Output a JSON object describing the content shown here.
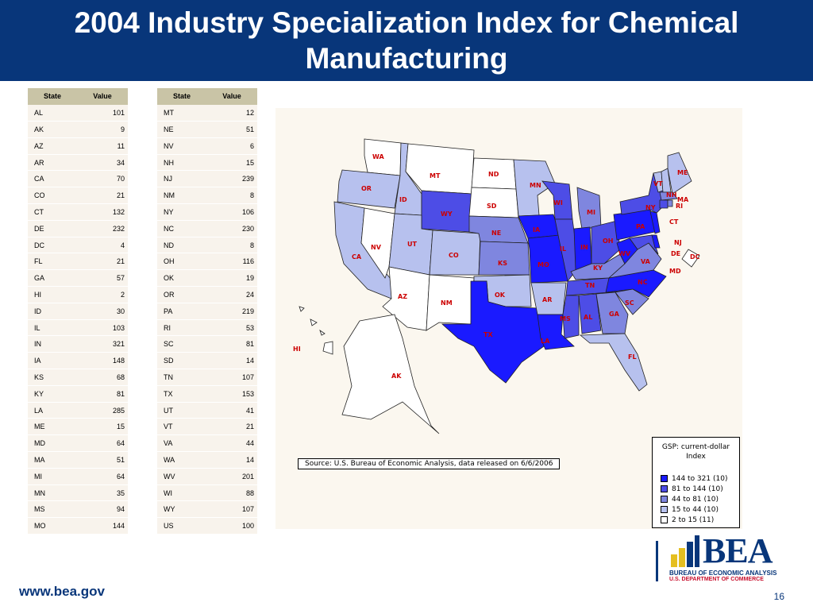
{
  "slide": {
    "title": "2004 Industry Specialization Index for Chemical Manufacturing",
    "footer_url": "www.bea.gov",
    "page_number": "16"
  },
  "table": {
    "headers": {
      "state": "State",
      "value": "Value"
    },
    "left_rows": [
      {
        "state": "AL",
        "value": "101"
      },
      {
        "state": "AK",
        "value": "9"
      },
      {
        "state": "AZ",
        "value": "11"
      },
      {
        "state": "AR",
        "value": "34"
      },
      {
        "state": "CA",
        "value": "70"
      },
      {
        "state": "CO",
        "value": "21"
      },
      {
        "state": "CT",
        "value": "132"
      },
      {
        "state": "DE",
        "value": "232"
      },
      {
        "state": "DC",
        "value": "4"
      },
      {
        "state": "FL",
        "value": "21"
      },
      {
        "state": "GA",
        "value": "57"
      },
      {
        "state": "HI",
        "value": "2"
      },
      {
        "state": "ID",
        "value": "30"
      },
      {
        "state": "IL",
        "value": "103"
      },
      {
        "state": "IN",
        "value": "321"
      },
      {
        "state": "IA",
        "value": "148"
      },
      {
        "state": "KS",
        "value": "68"
      },
      {
        "state": "KY",
        "value": "81"
      },
      {
        "state": "LA",
        "value": "285"
      },
      {
        "state": "ME",
        "value": "15"
      },
      {
        "state": "MD",
        "value": "64"
      },
      {
        "state": "MA",
        "value": "51"
      },
      {
        "state": "MI",
        "value": "64"
      },
      {
        "state": "MN",
        "value": "35"
      },
      {
        "state": "MS",
        "value": "94"
      },
      {
        "state": "MO",
        "value": "144"
      }
    ],
    "right_rows": [
      {
        "state": "MT",
        "value": "12"
      },
      {
        "state": "NE",
        "value": "51"
      },
      {
        "state": "NV",
        "value": "6"
      },
      {
        "state": "NH",
        "value": "15"
      },
      {
        "state": "NJ",
        "value": "239"
      },
      {
        "state": "NM",
        "value": "8"
      },
      {
        "state": "NY",
        "value": "106"
      },
      {
        "state": "NC",
        "value": "230"
      },
      {
        "state": "ND",
        "value": "8"
      },
      {
        "state": "OH",
        "value": "116"
      },
      {
        "state": "OK",
        "value": "19"
      },
      {
        "state": "OR",
        "value": "24"
      },
      {
        "state": "PA",
        "value": "219"
      },
      {
        "state": "RI",
        "value": "53"
      },
      {
        "state": "SC",
        "value": "81"
      },
      {
        "state": "SD",
        "value": "14"
      },
      {
        "state": "TN",
        "value": "107"
      },
      {
        "state": "TX",
        "value": "153"
      },
      {
        "state": "UT",
        "value": "41"
      },
      {
        "state": "VT",
        "value": "21"
      },
      {
        "state": "VA",
        "value": "44"
      },
      {
        "state": "WA",
        "value": "14"
      },
      {
        "state": "WV",
        "value": "201"
      },
      {
        "state": "WI",
        "value": "88"
      },
      {
        "state": "WY",
        "value": "107"
      },
      {
        "state": "US",
        "value": "100"
      }
    ]
  },
  "map": {
    "source_note": "Source: U.S. Bureau of Economic Analysis, data released on 6/6/2006",
    "legend": {
      "title_line1": "GSP: current-dollar",
      "title_line2": "Index",
      "classes": [
        {
          "label": "144 to 321  (10)",
          "color": "#1a1aff"
        },
        {
          "label": "81 to 144  (10)",
          "color": "#4d4de6"
        },
        {
          "label": "44 to  81  (10)",
          "color": "#7f86df"
        },
        {
          "label": "15 to  44  (10)",
          "color": "#b7c1ee"
        },
        {
          "label": "2 to  15  (11)",
          "color": "#ffffff"
        }
      ]
    },
    "state_labels": [
      "WA",
      "OR",
      "CA",
      "NV",
      "ID",
      "MT",
      "WY",
      "UT",
      "AZ",
      "CO",
      "NM",
      "ND",
      "SD",
      "NE",
      "KS",
      "OK",
      "TX",
      "MN",
      "IA",
      "MO",
      "AR",
      "LA",
      "WI",
      "IL",
      "MI",
      "IN",
      "OH",
      "KY",
      "TN",
      "MS",
      "AL",
      "GA",
      "FL",
      "SC",
      "NC",
      "VA",
      "WV",
      "PA",
      "NY",
      "VT",
      "NH",
      "ME",
      "MA",
      "RI",
      "CT",
      "NJ",
      "DE",
      "MD",
      "DC",
      "AK",
      "HI"
    ]
  },
  "logo": {
    "word": "BEA",
    "line1": "BUREAU OF ECONOMIC ANALYSIS",
    "line2": "U.S. DEPARTMENT OF COMMERCE"
  }
}
